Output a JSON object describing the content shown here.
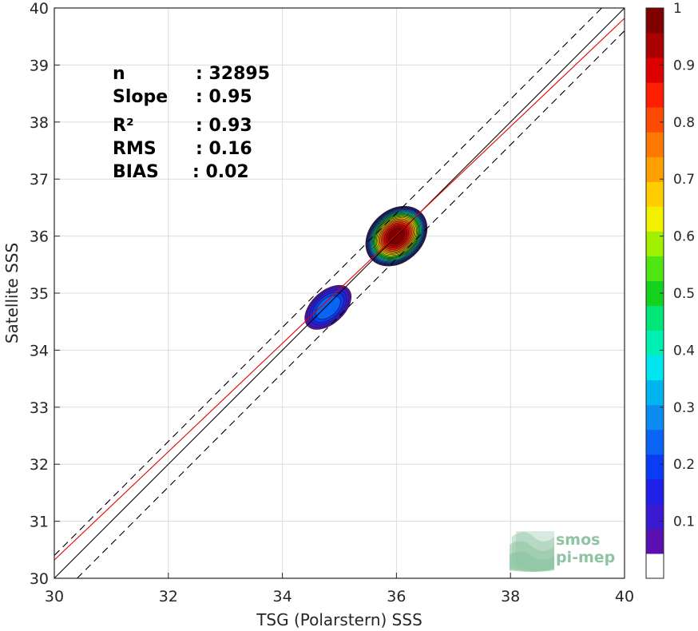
{
  "chart_data": {
    "type": "heatmap",
    "subtype": "density-contour scatter",
    "xlabel": "TSG (Polarstern) SSS",
    "ylabel": "Satellite SSS",
    "xlim": [
      30,
      40
    ],
    "ylim": [
      30,
      40
    ],
    "xticks": [
      "30",
      "32",
      "34",
      "36",
      "38",
      "40"
    ],
    "yticks": [
      "30",
      "31",
      "32",
      "33",
      "34",
      "35",
      "36",
      "37",
      "38",
      "39",
      "40"
    ],
    "grid": true,
    "stats": [
      {
        "label": "n",
        "value": ": 32895"
      },
      {
        "label": "Slope",
        "value": ": 0.95"
      },
      {
        "label": "R²",
        "value": ": 0.93"
      },
      {
        "label": "RMS",
        "value": ": 0.16"
      },
      {
        "label": "BIAS",
        "value": ": 0.02"
      }
    ],
    "lines": {
      "one_to_one": {
        "slope": 1,
        "intercept": 0,
        "color": "#000000"
      },
      "one_to_one_bounds": {
        "offset": 0.4,
        "style": "dashed",
        "color": "#000000"
      },
      "regression": {
        "slope": 0.95,
        "intercept": 1.82,
        "color": "#e00000"
      }
    },
    "density_clusters": [
      {
        "center": [
          36.0,
          36.0
        ],
        "spread_x": 0.52,
        "spread_y": 0.48,
        "peak": 1.0
      },
      {
        "center": [
          34.8,
          34.75
        ],
        "spread_x": 0.42,
        "spread_y": 0.3,
        "peak": 0.22
      }
    ],
    "colorbar": {
      "range": [
        0,
        1
      ],
      "ticks": [
        "0.1",
        "0.2",
        "0.3",
        "0.4",
        "0.5",
        "0.6",
        "0.7",
        "0.8",
        "0.9",
        "1"
      ],
      "colors": [
        "#ffffff",
        "#5a0fb0",
        "#3a1ad0",
        "#2020e8",
        "#0a3cf5",
        "#0a64f5",
        "#0a8cf0",
        "#00b4f0",
        "#00e6f0",
        "#00f0b4",
        "#00e678",
        "#14d21e",
        "#50e614",
        "#a0f000",
        "#f0f000",
        "#ffcd00",
        "#ffa000",
        "#ff7800",
        "#ff4b00",
        "#ff1e00",
        "#dc0000",
        "#aa0000",
        "#800000"
      ]
    }
  },
  "logo": {
    "line1": "smos",
    "line2": "pi-mep"
  }
}
